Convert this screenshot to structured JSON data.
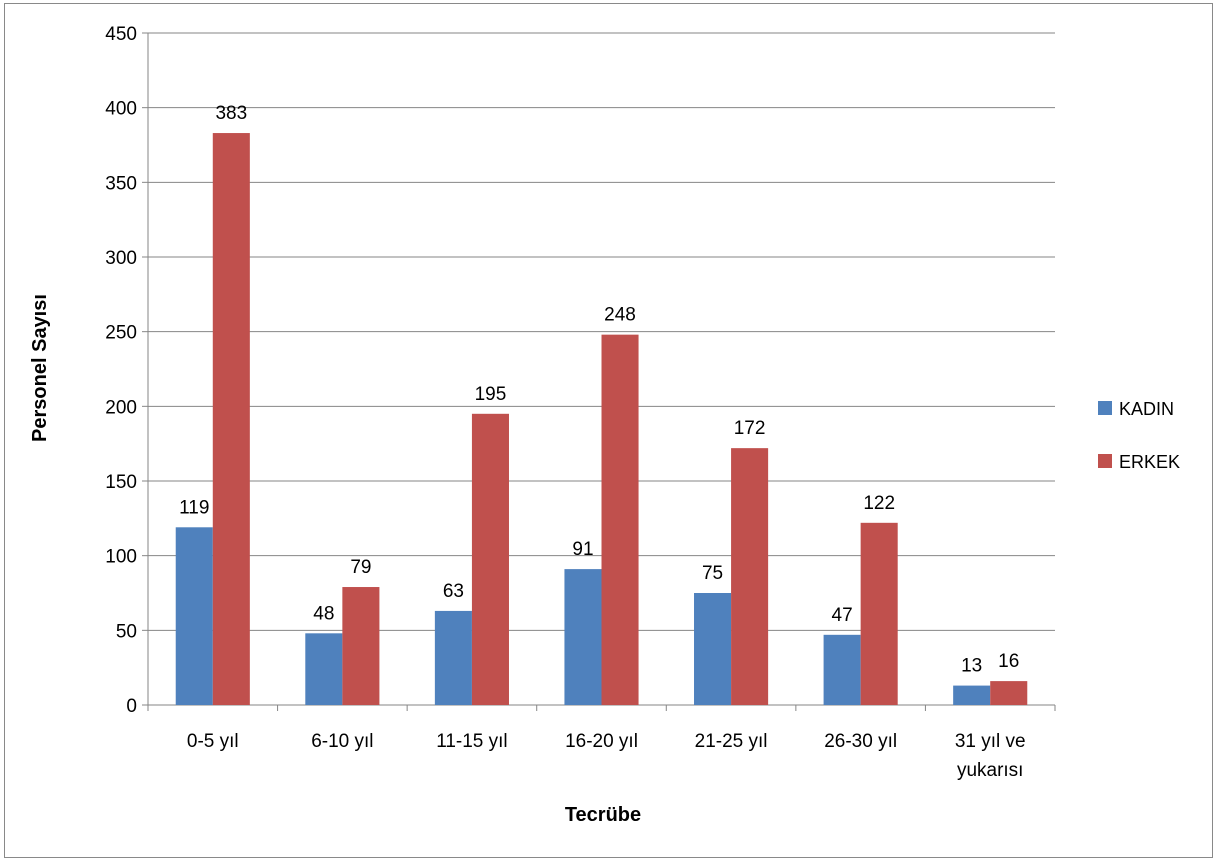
{
  "chart_data": {
    "type": "bar",
    "title": "",
    "xlabel": "Tecrübe",
    "ylabel": "Personel Sayısı",
    "categories": [
      "0-5 yıl",
      "6-10 yıl",
      "11-15 yıl",
      "16-20 yıl",
      "21-25 yıl",
      "26-30 yıl",
      "31 yıl ve yukarısı"
    ],
    "category_lines": [
      [
        "0-5 yıl"
      ],
      [
        "6-10 yıl"
      ],
      [
        "11-15 yıl"
      ],
      [
        "16-20 yıl"
      ],
      [
        "21-25 yıl"
      ],
      [
        "26-30 yıl"
      ],
      [
        "31 yıl ve",
        "yukarısı"
      ]
    ],
    "series": [
      {
        "name": "KADIN",
        "color": "#4f81bd",
        "values": [
          119,
          48,
          63,
          91,
          75,
          47,
          13
        ]
      },
      {
        "name": "ERKEK",
        "color": "#c0504d",
        "values": [
          383,
          79,
          195,
          248,
          172,
          122,
          16
        ]
      }
    ],
    "ylim": [
      0,
      450
    ],
    "yticks": [
      0,
      50,
      100,
      150,
      200,
      250,
      300,
      350,
      400,
      450
    ],
    "grid": true,
    "legend": "right",
    "data_labels": true
  }
}
